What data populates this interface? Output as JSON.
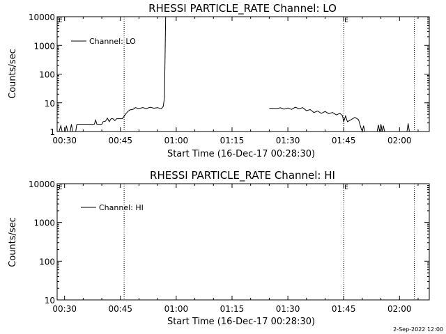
{
  "chart_data": [
    {
      "type": "line",
      "title": "RHESSI PARTICLE_RATE Channel: LO",
      "xlabel": "Start Time (16-Dec-17 00:28:30)",
      "ylabel": "Counts/sec",
      "yscale": "log",
      "ylim": [
        1,
        10000
      ],
      "yticks": [
        "1",
        "10",
        "100",
        "1000",
        "10000"
      ],
      "xticks": [
        "00:30",
        "00:45",
        "01:00",
        "01:15",
        "01:30",
        "01:45",
        "02:00"
      ],
      "xlim": [
        "00:28",
        "02:08"
      ],
      "legend": "Channel: LO",
      "legend_position": "upper-left",
      "flag_labels": [
        "E",
        "E",
        "E"
      ],
      "dotted_lines": [
        "00:46",
        "01:45",
        "02:04"
      ],
      "series": [
        {
          "segments": [
            [
              [
                "00:28:30",
                1
              ],
              [
                "00:29:00",
                1.6
              ],
              [
                "00:29:20",
                1
              ],
              [
                "00:30:10",
                1
              ],
              [
                "00:30:30",
                1.6
              ],
              [
                "00:30:50",
                1
              ],
              [
                "00:31:30",
                1
              ],
              [
                "00:31:50",
                1.8
              ],
              [
                "00:32:10",
                1
              ],
              [
                "00:33:00",
                1
              ],
              [
                "00:33:15",
                1.7
              ],
              [
                "00:33:30",
                1.8
              ],
              [
                "00:38:00",
                1.8
              ],
              [
                "00:38:20",
                2.5
              ],
              [
                "00:38:40",
                1.8
              ],
              [
                "00:40:00",
                1.8
              ],
              [
                "00:40:20",
                2.2
              ],
              [
                "00:41:00",
                2.3
              ],
              [
                "00:41:30",
                2.9
              ],
              [
                "00:42:00",
                2.2
              ],
              [
                "00:42:30",
                2.8
              ],
              [
                "00:43:00",
                2.8
              ],
              [
                "00:43:30",
                2.4
              ],
              [
                "00:44:00",
                2.8
              ],
              [
                "00:45:30",
                2.8
              ],
              [
                "00:46:00",
                3.4
              ],
              [
                "00:46:30",
                4.2
              ],
              [
                "00:47:00",
                5.0
              ],
              [
                "00:47:30",
                5.6
              ],
              [
                "00:48:30",
                6.0
              ],
              [
                "00:49:00",
                6.8
              ],
              [
                "00:50:00",
                6.3
              ],
              [
                "00:51:00",
                6.8
              ],
              [
                "00:52:00",
                6.3
              ],
              [
                "00:53:00",
                7.0
              ],
              [
                "00:54:00",
                6.5
              ],
              [
                "00:55:00",
                6.8
              ],
              [
                "00:56:00",
                6.2
              ],
              [
                "00:56:30",
                7.4
              ],
              [
                "00:56:50",
                15
              ],
              [
                "00:57:10",
                10000
              ]
            ],
            [
              [
                "01:25:00",
                6.5
              ],
              [
                "01:27:00",
                6.3
              ],
              [
                "01:28:00",
                6.7
              ],
              [
                "01:29:00",
                6.0
              ],
              [
                "01:30:00",
                6.6
              ],
              [
                "01:31:00",
                5.9
              ],
              [
                "01:32:00",
                7.0
              ],
              [
                "01:33:00",
                6.2
              ],
              [
                "01:34:00",
                6.8
              ],
              [
                "01:35:00",
                5.3
              ],
              [
                "01:36:00",
                5.8
              ],
              [
                "01:37:00",
                4.6
              ],
              [
                "01:38:00",
                5.2
              ],
              [
                "01:39:00",
                4.3
              ],
              [
                "01:40:00",
                5.0
              ],
              [
                "01:41:00",
                4.2
              ],
              [
                "01:42:00",
                4.6
              ],
              [
                "01:43:00",
                3.8
              ],
              [
                "01:44:00",
                4.3
              ],
              [
                "01:44:40",
                3.6
              ],
              [
                "01:45:00",
                2.2
              ],
              [
                "01:45:30",
                3.5
              ],
              [
                "01:46:00",
                2.2
              ],
              [
                "01:47:00",
                2.6
              ],
              [
                "01:48:00",
                3.1
              ],
              [
                "01:49:00",
                2.6
              ],
              [
                "01:49:40",
                1.3
              ],
              [
                "01:50:00",
                1
              ],
              [
                "01:50:20",
                1.6
              ],
              [
                "01:50:40",
                1
              ]
            ],
            [
              [
                "01:54:00",
                1
              ],
              [
                "01:54:20",
                1.7
              ],
              [
                "01:54:40",
                1
              ],
              [
                "01:55:00",
                1.8
              ],
              [
                "01:55:20",
                1
              ],
              [
                "01:55:40",
                1.6
              ],
              [
                "01:56:00",
                1
              ]
            ],
            [
              [
                "02:02:00",
                1
              ],
              [
                "02:02:20",
                1.9
              ],
              [
                "02:02:40",
                1
              ]
            ]
          ]
        }
      ]
    },
    {
      "type": "line",
      "title": "RHESSI PARTICLE_RATE Channel: HI",
      "xlabel": "Start Time (16-Dec-17 00:28:30)",
      "ylabel": "Counts/sec",
      "yscale": "log",
      "ylim": [
        10,
        10000
      ],
      "yticks": [
        "10",
        "100",
        "1000",
        "10000"
      ],
      "xticks": [
        "00:30",
        "00:45",
        "01:00",
        "01:15",
        "01:30",
        "01:45",
        "02:00"
      ],
      "xlim": [
        "00:28",
        "02:08"
      ],
      "legend": "Channel: HI",
      "legend_position": "upper-left",
      "flag_labels": [
        "E",
        "E",
        "E"
      ],
      "dotted_lines": [
        "00:46",
        "01:45",
        "02:04"
      ],
      "series": [
        {
          "segments": []
        }
      ]
    }
  ],
  "footer": {
    "stamp": "2-Sep-2022 12:00"
  }
}
